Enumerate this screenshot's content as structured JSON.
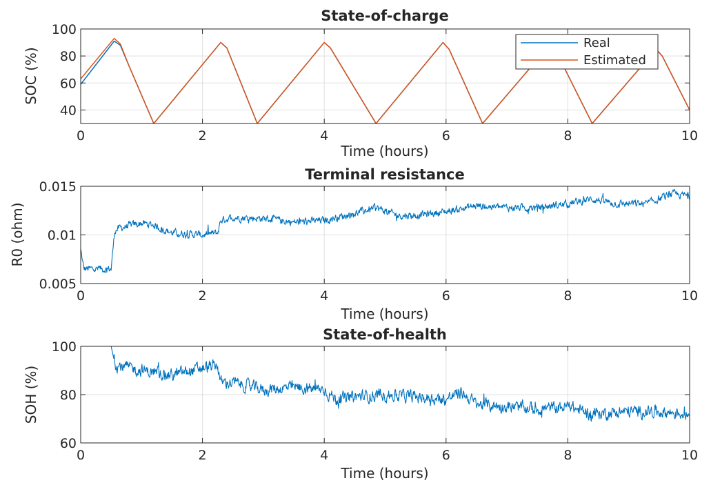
{
  "chart_data": [
    {
      "id": "soc",
      "type": "line",
      "title": "State-of-charge",
      "xlabel": "Time (hours)",
      "ylabel": "SOC (%)",
      "xlim": [
        0,
        10
      ],
      "ylim": [
        30,
        100
      ],
      "xticks": [
        0,
        2,
        4,
        6,
        8,
        10
      ],
      "yticks": [
        40,
        60,
        80,
        100
      ],
      "grid": true,
      "legend": {
        "placement": "top-right"
      },
      "series": [
        {
          "name": "Real",
          "color": "#0072BD",
          "x": [
            0,
            0.55,
            0.65,
            0.8,
            1.2,
            2.3,
            2.4,
            2.9,
            4.0,
            4.1,
            4.85,
            5.95,
            6.05,
            6.6,
            7.7,
            7.8,
            8.4,
            9.45,
            9.55,
            10.0
          ],
          "y": [
            59,
            91,
            88,
            72,
            30,
            90,
            86,
            30,
            90,
            86,
            30,
            90,
            85,
            30,
            88,
            84,
            30,
            85,
            80,
            40
          ]
        },
        {
          "name": "Estimated",
          "color": "#D95319",
          "x": [
            0,
            0.55,
            0.65,
            0.8,
            1.2,
            2.3,
            2.4,
            2.9,
            4.0,
            4.1,
            4.85,
            5.95,
            6.05,
            6.6,
            7.7,
            7.8,
            8.4,
            9.45,
            9.55,
            10.0
          ],
          "y": [
            63,
            93,
            89,
            72,
            30,
            90,
            86,
            30,
            90,
            86,
            30,
            90,
            85,
            30,
            88,
            84,
            30,
            85,
            80,
            40
          ]
        }
      ]
    },
    {
      "id": "r0",
      "type": "line",
      "title": "Terminal resistance",
      "xlabel": "Time (hours)",
      "ylabel": "R0 (ohm)",
      "xlim": [
        0,
        10
      ],
      "ylim": [
        0.005,
        0.015
      ],
      "xticks": [
        0,
        2,
        4,
        6,
        8,
        10
      ],
      "yticks": [
        0.005,
        0.01,
        0.015
      ],
      "ytick_labels": [
        "0.005",
        "0.01",
        "0.015"
      ],
      "grid": true,
      "series": [
        {
          "color": "#0072BD",
          "noise": 0.0003,
          "x": [
            0,
            0.05,
            0.5,
            0.56,
            0.7,
            1.0,
            1.2,
            1.5,
            2.0,
            2.25,
            2.3,
            2.5,
            3.0,
            3.5,
            4.0,
            4.5,
            4.85,
            5.2,
            5.5,
            6.0,
            6.5,
            7.0,
            7.5,
            8.0,
            8.4,
            8.8,
            9.3,
            9.7,
            10.0
          ],
          "y": [
            0.0085,
            0.0065,
            0.0065,
            0.0105,
            0.0108,
            0.0112,
            0.011,
            0.0102,
            0.01,
            0.0102,
            0.0115,
            0.0118,
            0.0117,
            0.0113,
            0.0115,
            0.0122,
            0.0128,
            0.012,
            0.012,
            0.0124,
            0.013,
            0.0128,
            0.0128,
            0.0132,
            0.0137,
            0.0132,
            0.0132,
            0.0142,
            0.014
          ]
        }
      ]
    },
    {
      "id": "soh",
      "type": "line",
      "title": "State-of-health",
      "xlabel": "Time (hours)",
      "ylabel": "SOH (%)",
      "xlim": [
        0,
        10
      ],
      "ylim": [
        60,
        100
      ],
      "xticks": [
        0,
        2,
        4,
        6,
        8,
        10
      ],
      "yticks": [
        60,
        80,
        100
      ],
      "grid": true,
      "series": [
        {
          "color": "#0072BD",
          "noise": 2.0,
          "x": [
            0,
            0.5,
            0.56,
            0.6,
            1.0,
            1.5,
            2.0,
            2.25,
            2.3,
            2.5,
            3.0,
            3.5,
            4.0,
            4.2,
            4.5,
            5.0,
            5.5,
            6.0,
            6.25,
            6.5,
            7.0,
            7.5,
            8.0,
            8.4,
            9.0,
            9.5,
            10.0
          ],
          "y": [
            100,
            100,
            93,
            92,
            90,
            88,
            91,
            92,
            85,
            85,
            82,
            83,
            82,
            78,
            79,
            80,
            79,
            78,
            81,
            76,
            75,
            74,
            75,
            72,
            73,
            73,
            72
          ]
        }
      ]
    }
  ]
}
